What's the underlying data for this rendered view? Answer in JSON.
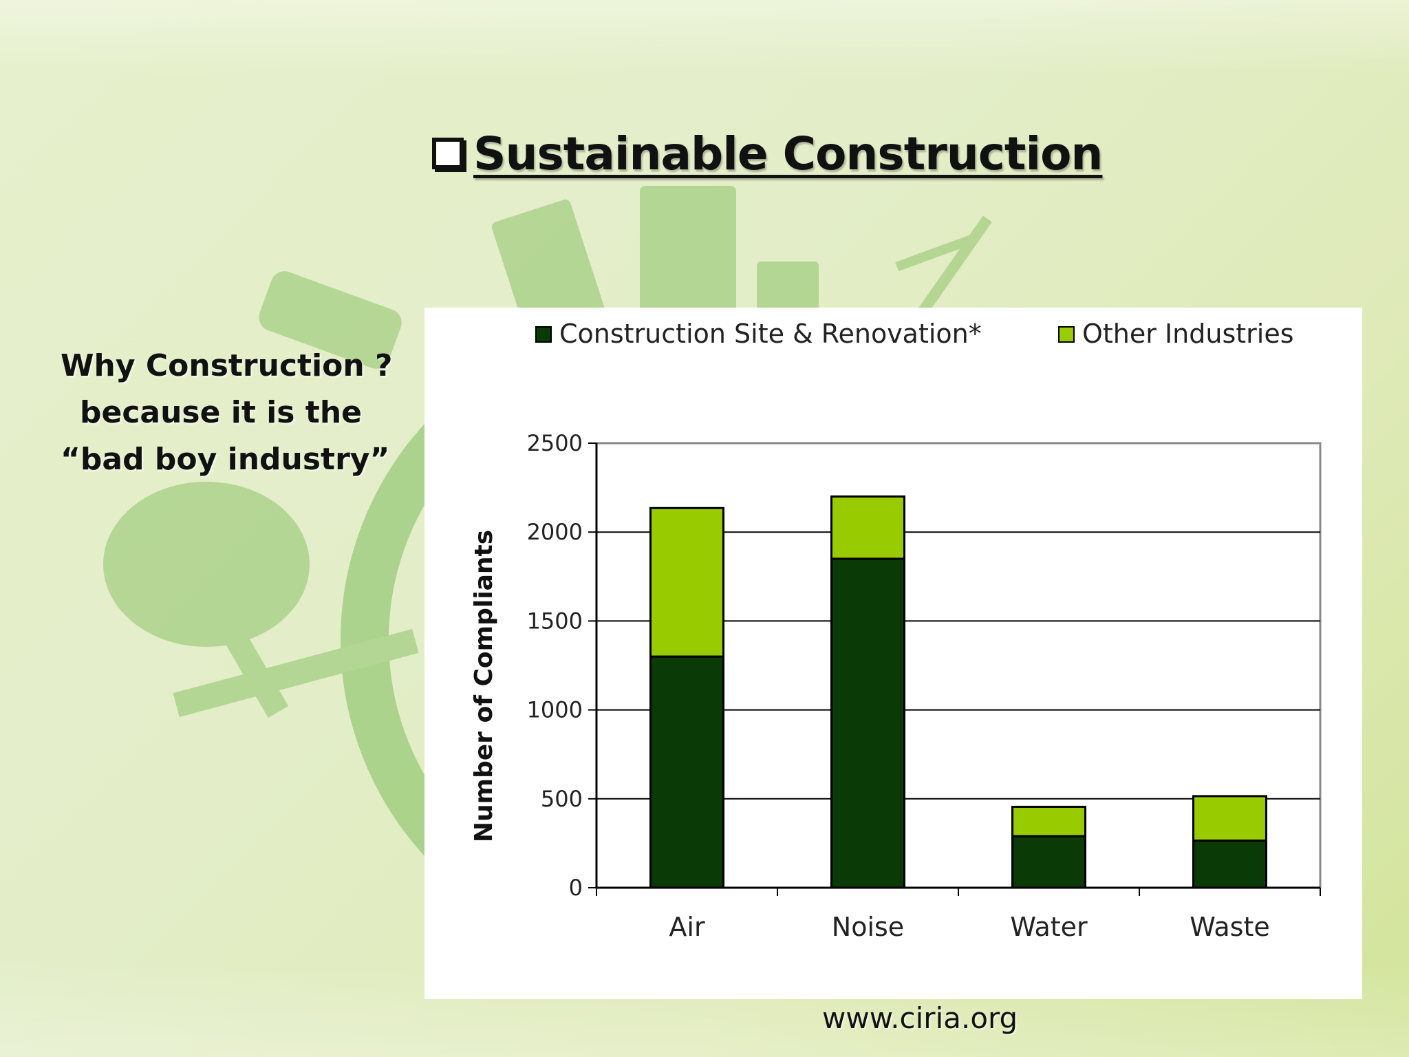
{
  "slide": {
    "title": "Sustainable Construction",
    "why_lines": [
      "Why Construction ?",
      "because it is the",
      "“bad boy industry”"
    ],
    "footer": "www.ciria.org"
  },
  "colors": {
    "construction": "#0a3a05",
    "other": "#99cc00",
    "background_green": "#dfeab8"
  },
  "chart_data": {
    "type": "bar",
    "stacked": true,
    "categories": [
      "Air",
      "Noise",
      "Water",
      "Waste"
    ],
    "series": [
      {
        "name": "Construction Site & Renovation*",
        "values": [
          1300,
          1850,
          290,
          265
        ]
      },
      {
        "name": "Other Industries",
        "values": [
          835,
          350,
          165,
          250
        ]
      }
    ],
    "title": "",
    "xlabel": "",
    "ylabel": "Number of Compliants",
    "ylim": [
      0,
      2500
    ],
    "yticks": [
      0,
      500,
      1000,
      1500,
      2000,
      2500
    ],
    "grid": true,
    "legend": "top"
  }
}
